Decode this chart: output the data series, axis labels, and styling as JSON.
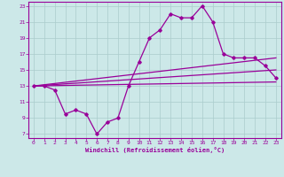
{
  "xlabel": "Windchill (Refroidissement éolien,°C)",
  "background_color": "#cce8e8",
  "grid_color": "#aacccc",
  "line_color": "#990099",
  "spine_color": "#990099",
  "xlim": [
    -0.5,
    23.5
  ],
  "ylim": [
    6.5,
    23.5
  ],
  "xticks": [
    0,
    1,
    2,
    3,
    4,
    5,
    6,
    7,
    8,
    9,
    10,
    11,
    12,
    13,
    14,
    15,
    16,
    17,
    18,
    19,
    20,
    21,
    22,
    23
  ],
  "yticks": [
    7,
    9,
    11,
    13,
    15,
    17,
    19,
    21,
    23
  ],
  "series1_x": [
    0,
    1,
    2,
    3,
    4,
    5,
    6,
    7,
    8,
    9,
    10,
    11,
    12,
    13,
    14,
    15,
    16,
    17,
    18,
    19,
    20,
    21,
    22,
    23
  ],
  "series1_y": [
    13.0,
    13.0,
    12.5,
    9.5,
    10.0,
    9.5,
    7.0,
    8.5,
    9.0,
    13.0,
    16.0,
    19.0,
    20.0,
    22.0,
    21.5,
    21.5,
    23.0,
    21.0,
    17.0,
    16.5,
    16.5,
    16.5,
    15.5,
    14.0
  ],
  "series2_x": [
    0,
    23
  ],
  "series2_y": [
    13.0,
    16.5
  ],
  "series3_x": [
    0,
    23
  ],
  "series3_y": [
    13.0,
    15.0
  ],
  "series4_x": [
    0,
    23
  ],
  "series4_y": [
    13.0,
    13.5
  ]
}
